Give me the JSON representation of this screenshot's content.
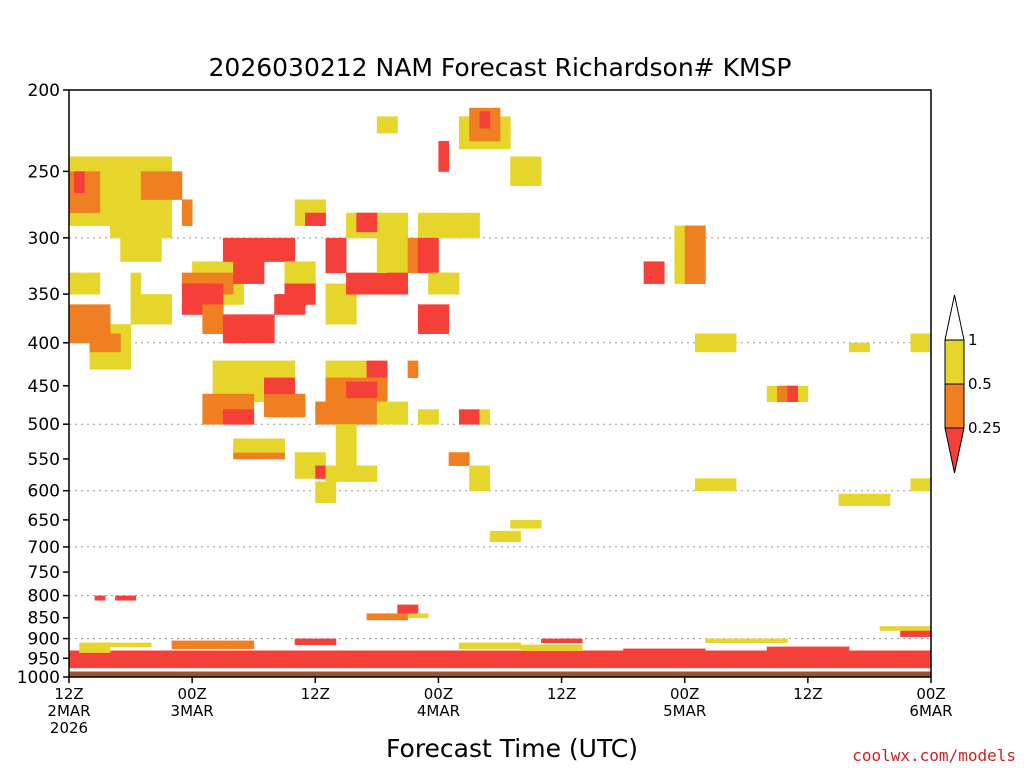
{
  "chart_data": {
    "type": "heatmap",
    "title": "2026030212 NAM Forecast Richardson# KMSP",
    "xlabel": "Forecast Time (UTC)",
    "ylabel": "",
    "x_unit": "forecast hour",
    "xlim": [
      0,
      84
    ],
    "y_unit": "hPa",
    "ylim": [
      200,
      1000
    ],
    "y_scale": "log",
    "y_ticks": [
      200,
      250,
      300,
      350,
      400,
      450,
      500,
      550,
      600,
      650,
      700,
      750,
      800,
      850,
      900,
      950,
      1000
    ],
    "y_tick_labels": [
      "200",
      "250",
      "300",
      "350",
      "400",
      "450",
      "500",
      "550",
      "600",
      "650",
      "700",
      "750",
      "800",
      "850",
      "900",
      "950",
      "1000"
    ],
    "y_gridlines_dotted": [
      300,
      400,
      500,
      600,
      700,
      800,
      900
    ],
    "x_ticks": [
      {
        "hour": 0,
        "lines": [
          "12Z",
          "2MAR",
          "2026"
        ]
      },
      {
        "hour": 12,
        "lines": [
          "00Z",
          "3MAR"
        ]
      },
      {
        "hour": 24,
        "lines": [
          "12Z"
        ]
      },
      {
        "hour": 36,
        "lines": [
          "00Z",
          "4MAR"
        ]
      },
      {
        "hour": 48,
        "lines": [
          "12Z"
        ]
      },
      {
        "hour": 60,
        "lines": [
          "00Z",
          "5MAR"
        ]
      },
      {
        "hour": 72,
        "lines": [
          "12Z"
        ]
      },
      {
        "hour": 84,
        "lines": [
          "00Z",
          "6MAR"
        ]
      }
    ],
    "legend": {
      "placement": "right",
      "levels": [
        "1",
        "0.5",
        "0.25"
      ],
      "bins": [
        {
          "label": "> 1",
          "color": "#ffffff"
        },
        {
          "label": "0.5 – 1",
          "color": "#e6d62c"
        },
        {
          "label": "0.25 – 0.5",
          "color": "#f07f22"
        },
        {
          "label": "< 0.25",
          "color": "#f5403a"
        }
      ]
    },
    "ground_color": "#a0522d",
    "ground_level_hPa": 985,
    "cell_hours": 1,
    "cell_hPa": 10,
    "regions": [
      {
        "bin": "0.5 – 1",
        "x": [
          0,
          8
        ],
        "p": [
          240,
          290
        ]
      },
      {
        "bin": "0.5 – 1",
        "x": [
          4,
          10
        ],
        "p": [
          240,
          300
        ]
      },
      {
        "bin": "0.5 – 1",
        "x": [
          5,
          9
        ],
        "p": [
          300,
          320
        ]
      },
      {
        "bin": "0.5 – 1",
        "x": [
          0,
          3
        ],
        "p": [
          330,
          350
        ]
      },
      {
        "bin": "0.5 – 1",
        "x": [
          6,
          10
        ],
        "p": [
          350,
          380
        ]
      },
      {
        "bin": "0.5 – 1",
        "x": [
          2,
          6
        ],
        "p": [
          380,
          430
        ]
      },
      {
        "bin": "0.5 – 1",
        "x": [
          6,
          7
        ],
        "p": [
          330,
          350
        ]
      },
      {
        "bin": "0.25 – 0.5",
        "x": [
          0,
          3
        ],
        "p": [
          250,
          280
        ]
      },
      {
        "bin": "0.25 – 0.5",
        "x": [
          7,
          11
        ],
        "p": [
          250,
          270
        ]
      },
      {
        "bin": "0.25 – 0.5",
        "x": [
          11,
          12
        ],
        "p": [
          270,
          290
        ]
      },
      {
        "bin": "0.25 – 0.5",
        "x": [
          0,
          4
        ],
        "p": [
          360,
          400
        ]
      },
      {
        "bin": "0.25 – 0.5",
        "x": [
          2,
          5
        ],
        "p": [
          390,
          410
        ]
      },
      {
        "bin": "< 0.25",
        "x": [
          0.5,
          1.5
        ],
        "p": [
          250,
          265
        ]
      },
      {
        "bin": "0.5 – 1",
        "x": [
          12,
          17
        ],
        "p": [
          320,
          360
        ]
      },
      {
        "bin": "0.25 – 0.5",
        "x": [
          11,
          16
        ],
        "p": [
          330,
          350
        ]
      },
      {
        "bin": "< 0.25",
        "x": [
          11,
          15
        ],
        "p": [
          340,
          370
        ]
      },
      {
        "bin": "0.25 – 0.5",
        "x": [
          13,
          15
        ],
        "p": [
          360,
          390
        ]
      },
      {
        "bin": "< 0.25",
        "x": [
          15,
          22
        ],
        "p": [
          300,
          320
        ]
      },
      {
        "bin": "< 0.25",
        "x": [
          16,
          19
        ],
        "p": [
          320,
          340
        ]
      },
      {
        "bin": "< 0.25",
        "x": [
          20,
          23
        ],
        "p": [
          350,
          370
        ]
      },
      {
        "bin": "< 0.25",
        "x": [
          15,
          20
        ],
        "p": [
          370,
          400
        ]
      },
      {
        "bin": "0.5 – 1",
        "x": [
          14,
          22
        ],
        "p": [
          420,
          470
        ]
      },
      {
        "bin": "0.25 – 0.5",
        "x": [
          13,
          18
        ],
        "p": [
          460,
          500
        ]
      },
      {
        "bin": "< 0.25",
        "x": [
          15,
          18
        ],
        "p": [
          480,
          500
        ]
      },
      {
        "bin": "0.25 – 0.5",
        "x": [
          19,
          23
        ],
        "p": [
          460,
          490
        ]
      },
      {
        "bin": "< 0.25",
        "x": [
          19,
          22
        ],
        "p": [
          440,
          460
        ]
      },
      {
        "bin": "0.25 – 0.5",
        "x": [
          16,
          21
        ],
        "p": [
          530,
          550
        ]
      },
      {
        "bin": "0.5 – 1",
        "x": [
          16,
          21
        ],
        "p": [
          520,
          540
        ]
      },
      {
        "bin": "0.5 – 1",
        "x": [
          22,
          25
        ],
        "p": [
          270,
          290
        ]
      },
      {
        "bin": "< 0.25",
        "x": [
          23,
          25
        ],
        "p": [
          280,
          290
        ]
      },
      {
        "bin": "0.5 – 1",
        "x": [
          21,
          24
        ],
        "p": [
          320,
          340
        ]
      },
      {
        "bin": "< 0.25",
        "x": [
          21,
          24
        ],
        "p": [
          340,
          360
        ]
      },
      {
        "bin": "0.5 – 1",
        "x": [
          25,
          28
        ],
        "p": [
          340,
          380
        ]
      },
      {
        "bin": "< 0.25",
        "x": [
          27,
          31
        ],
        "p": [
          330,
          350
        ]
      },
      {
        "bin": "< 0.25",
        "x": [
          25,
          27
        ],
        "p": [
          300,
          330
        ]
      },
      {
        "bin": "0.5 – 1",
        "x": [
          27,
          33
        ],
        "p": [
          280,
          300
        ]
      },
      {
        "bin": "< 0.25",
        "x": [
          28,
          30
        ],
        "p": [
          280,
          295
        ]
      },
      {
        "bin": "0.5 – 1",
        "x": [
          30,
          33
        ],
        "p": [
          300,
          330
        ]
      },
      {
        "bin": "< 0.25",
        "x": [
          31,
          33
        ],
        "p": [
          330,
          350
        ]
      },
      {
        "bin": "0.25 – 0.5",
        "x": [
          33,
          34
        ],
        "p": [
          300,
          330
        ]
      },
      {
        "bin": "0.5 – 1",
        "x": [
          34,
          36
        ],
        "p": [
          280,
          300
        ]
      },
      {
        "bin": "< 0.25",
        "x": [
          34,
          36
        ],
        "p": [
          300,
          330
        ]
      },
      {
        "bin": "0.5 – 1",
        "x": [
          35,
          37
        ],
        "p": [
          330,
          350
        ]
      },
      {
        "bin": "< 0.25",
        "x": [
          34,
          37
        ],
        "p": [
          360,
          390
        ]
      },
      {
        "bin": "0.5 – 1",
        "x": [
          25,
          30
        ],
        "p": [
          420,
          440
        ]
      },
      {
        "bin": "< 0.25",
        "x": [
          29,
          31
        ],
        "p": [
          420,
          450
        ]
      },
      {
        "bin": "0.25 – 0.5",
        "x": [
          25,
          31
        ],
        "p": [
          440,
          470
        ]
      },
      {
        "bin": "< 0.25",
        "x": [
          27,
          30
        ],
        "p": [
          445,
          465
        ]
      },
      {
        "bin": "0.25 – 0.5",
        "x": [
          24,
          30
        ],
        "p": [
          470,
          500
        ]
      },
      {
        "bin": "0.5 – 1",
        "x": [
          30,
          33
        ],
        "p": [
          470,
          500
        ]
      },
      {
        "bin": "0.25 – 0.5",
        "x": [
          33,
          34
        ],
        "p": [
          420,
          440
        ]
      },
      {
        "bin": "0.5 – 1",
        "x": [
          26,
          28
        ],
        "p": [
          500,
          560
        ]
      },
      {
        "bin": "0.5 – 1",
        "x": [
          22,
          25
        ],
        "p": [
          540,
          580
        ]
      },
      {
        "bin": "< 0.25",
        "x": [
          24,
          25
        ],
        "p": [
          560,
          580
        ]
      },
      {
        "bin": "0.5 – 1",
        "x": [
          25,
          30
        ],
        "p": [
          560,
          585
        ]
      },
      {
        "bin": "0.5 – 1",
        "x": [
          24,
          26
        ],
        "p": [
          585,
          620
        ]
      },
      {
        "bin": "0.5 – 1",
        "x": [
          34,
          36
        ],
        "p": [
          480,
          500
        ]
      },
      {
        "bin": "< 0.25",
        "x": [
          38,
          40
        ],
        "p": [
          480,
          500
        ]
      },
      {
        "bin": "0.5 – 1",
        "x": [
          40,
          41
        ],
        "p": [
          480,
          500
        ]
      },
      {
        "bin": "0.25 – 0.5",
        "x": [
          37,
          39
        ],
        "p": [
          540,
          560
        ]
      },
      {
        "bin": "0.5 – 1",
        "x": [
          39,
          41
        ],
        "p": [
          560,
          600
        ]
      },
      {
        "bin": "0.5 – 1",
        "x": [
          36,
          40
        ],
        "p": [
          280,
          300
        ]
      },
      {
        "bin": "0.5 – 1",
        "x": [
          36,
          38
        ],
        "p": [
          330,
          350
        ]
      },
      {
        "bin": "0.5 – 1",
        "x": [
          38,
          43
        ],
        "p": [
          215,
          235
        ]
      },
      {
        "bin": "0.25 – 0.5",
        "x": [
          39,
          42
        ],
        "p": [
          210,
          230
        ]
      },
      {
        "bin": "< 0.25",
        "x": [
          40,
          41
        ],
        "p": [
          212,
          222
        ]
      },
      {
        "bin": "< 0.25",
        "x": [
          36,
          37
        ],
        "p": [
          230,
          250
        ]
      },
      {
        "bin": "0.5 – 1",
        "x": [
          43,
          46
        ],
        "p": [
          240,
          260
        ]
      },
      {
        "bin": "0.5 – 1",
        "x": [
          30,
          32
        ],
        "p": [
          215,
          225
        ]
      },
      {
        "bin": "0.5 – 1",
        "x": [
          59,
          62
        ],
        "p": [
          290,
          340
        ]
      },
      {
        "bin": "0.25 – 0.5",
        "x": [
          60,
          62
        ],
        "p": [
          290,
          340
        ]
      },
      {
        "bin": "< 0.25",
        "x": [
          56,
          58
        ],
        "p": [
          320,
          340
        ]
      },
      {
        "bin": "0.5 – 1",
        "x": [
          61,
          65
        ],
        "p": [
          390,
          410
        ]
      },
      {
        "bin": "0.5 – 1",
        "x": [
          68,
          72
        ],
        "p": [
          450,
          470
        ]
      },
      {
        "bin": "0.25 – 0.5",
        "x": [
          69,
          71
        ],
        "p": [
          450,
          470
        ]
      },
      {
        "bin": "< 0.25",
        "x": [
          70,
          71
        ],
        "p": [
          450,
          470
        ]
      },
      {
        "bin": "0.5 – 1",
        "x": [
          61,
          65
        ],
        "p": [
          580,
          600
        ]
      },
      {
        "bin": "0.5 – 1",
        "x": [
          75,
          80
        ],
        "p": [
          605,
          625
        ]
      },
      {
        "bin": "0.5 – 1",
        "x": [
          82,
          84
        ],
        "p": [
          580,
          600
        ]
      },
      {
        "bin": "0.5 – 1",
        "x": [
          76,
          78
        ],
        "p": [
          400,
          410
        ]
      },
      {
        "bin": "0.5 – 1",
        "x": [
          82,
          84
        ],
        "p": [
          390,
          410
        ]
      },
      {
        "bin": "0.5 – 1",
        "x": [
          43,
          46
        ],
        "p": [
          650,
          665
        ]
      },
      {
        "bin": "0.5 – 1",
        "x": [
          41,
          44
        ],
        "p": [
          670,
          690
        ]
      },
      {
        "bin": "< 0.25",
        "x": [
          2.5,
          3.5
        ],
        "p": [
          800,
          810
        ]
      },
      {
        "bin": "< 0.25",
        "x": [
          4.5,
          6.5
        ],
        "p": [
          800,
          810
        ]
      },
      {
        "bin": "< 0.25",
        "x": [
          32,
          34
        ],
        "p": [
          820,
          840
        ]
      },
      {
        "bin": "0.25 – 0.5",
        "x": [
          29,
          33
        ],
        "p": [
          840,
          855
        ]
      },
      {
        "bin": "0.5 – 1",
        "x": [
          33,
          35
        ],
        "p": [
          840,
          850
        ]
      },
      {
        "bin": "< 0.25",
        "x": [
          0,
          84
        ],
        "p": [
          930,
          975
        ]
      },
      {
        "bin": "0.25 – 0.5",
        "x": [
          10,
          18
        ],
        "p": [
          905,
          925
        ]
      },
      {
        "bin": "< 0.25",
        "x": [
          22,
          26
        ],
        "p": [
          900,
          915
        ]
      },
      {
        "bin": "0.5 – 1",
        "x": [
          3,
          8
        ],
        "p": [
          910,
          920
        ]
      },
      {
        "bin": "0.5 – 1",
        "x": [
          38,
          44
        ],
        "p": [
          910,
          925
        ]
      },
      {
        "bin": "< 0.25",
        "x": [
          54,
          62
        ],
        "p": [
          925,
          935
        ]
      },
      {
        "bin": "0.5 – 1",
        "x": [
          62,
          70
        ],
        "p": [
          900,
          910
        ]
      },
      {
        "bin": "< 0.25",
        "x": [
          68,
          76
        ],
        "p": [
          920,
          930
        ]
      },
      {
        "bin": "< 0.25",
        "x": [
          81,
          84
        ],
        "p": [
          880,
          895
        ]
      },
      {
        "bin": "0.5 – 1",
        "x": [
          79,
          84
        ],
        "p": [
          870,
          880
        ]
      },
      {
        "bin": "0.5 – 1",
        "x": [
          1,
          4
        ],
        "p": [
          910,
          935
        ]
      },
      {
        "bin": "0.5 – 1",
        "x": [
          44,
          50
        ],
        "p": [
          915,
          930
        ]
      },
      {
        "bin": "< 0.25",
        "x": [
          46,
          50
        ],
        "p": [
          900,
          910
        ]
      }
    ]
  },
  "credit": "coolwx.com/models"
}
